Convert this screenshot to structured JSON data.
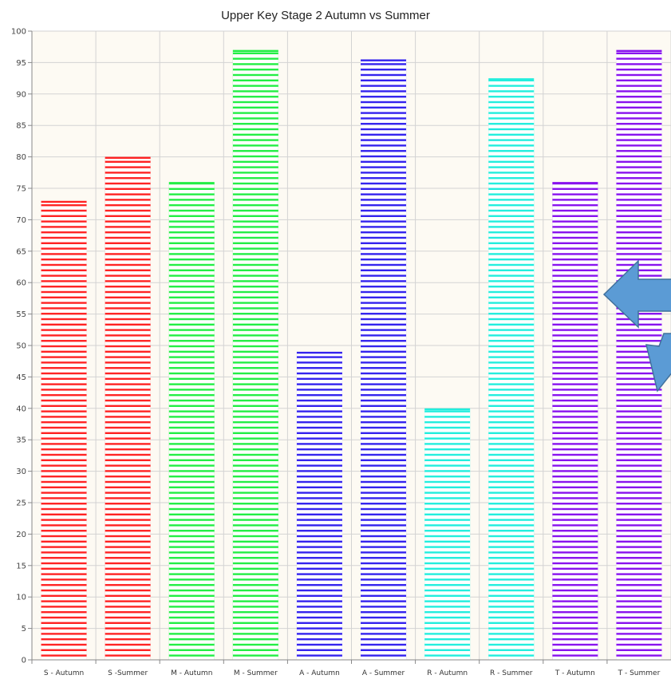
{
  "chart_data": {
    "type": "bar",
    "title": "Upper Key Stage 2 Autumn vs Summer",
    "xlabel": "",
    "ylabel": "",
    "ylim": [
      0,
      100
    ],
    "ytick_step": 5,
    "grid": true,
    "categories": [
      "S  - Autumn",
      "S -Summer",
      "M - Autumn",
      "M - Summer",
      "A - Autumn",
      "A  - Summer",
      "R - Autumn",
      "R - Summer",
      "T - Autumn",
      "T - Summer"
    ],
    "values": [
      73,
      80,
      76,
      97,
      49,
      95.5,
      40,
      92.5,
      76,
      97
    ],
    "bar_colors": [
      "#ff2222",
      "#ff2222",
      "#22ee44",
      "#22ee44",
      "#3322ee",
      "#3322ee",
      "#22eedd",
      "#22eedd",
      "#8811ee",
      "#8811ee"
    ],
    "plot_background": "#fdfaf3",
    "grid_color": "#d3d3d3"
  },
  "arrows": {
    "color": "#5b9bd5",
    "outline": "#41719c"
  }
}
